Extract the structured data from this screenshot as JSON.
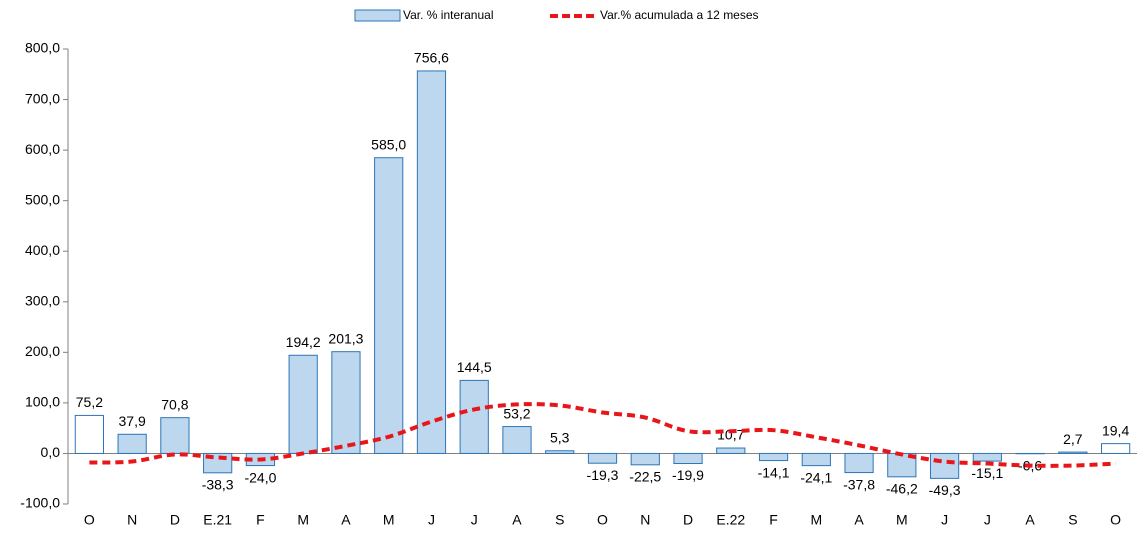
{
  "chart_data": {
    "type": "bar_line",
    "categories": [
      "O",
      "N",
      "D",
      "E.21",
      "F",
      "M",
      "A",
      "M",
      "J",
      "J",
      "A",
      "S",
      "O",
      "N",
      "D",
      "E.22",
      "F",
      "M",
      "A",
      "M",
      "J",
      "J",
      "A",
      "S",
      "O"
    ],
    "series": [
      {
        "name": "Var. % interanual",
        "type": "bar",
        "color": "#bdd7ee",
        "edge_color": "#2e75b6",
        "colors": [
          "#ffffff",
          "#bdd7ee",
          "#bdd7ee",
          "#bdd7ee",
          "#bdd7ee",
          "#bdd7ee",
          "#bdd7ee",
          "#bdd7ee",
          "#bdd7ee",
          "#bdd7ee",
          "#bdd7ee",
          "#bdd7ee",
          "#bdd7ee",
          "#bdd7ee",
          "#bdd7ee",
          "#bdd7ee",
          "#bdd7ee",
          "#bdd7ee",
          "#bdd7ee",
          "#bdd7ee",
          "#bdd7ee",
          "#bdd7ee",
          "#bdd7ee",
          "#bdd7ee",
          "#ffffff"
        ],
        "values": [
          75.2,
          37.9,
          70.8,
          -38.3,
          -24.0,
          194.2,
          201.3,
          585.0,
          756.6,
          144.5,
          53.2,
          5.3,
          -19.3,
          -22.5,
          -19.9,
          10.7,
          -14.1,
          -24.1,
          -37.8,
          -46.2,
          -49.3,
          -15.1,
          -0.6,
          2.7,
          19.4
        ],
        "value_labels": [
          "75,2",
          "37,9",
          "70,8",
          "-38,3",
          "-24,0",
          "194,2",
          "201,3",
          "585,0",
          "756,6",
          "144,5",
          "53,2",
          "5,3",
          "-19,3",
          "-22,5",
          "-19,9",
          "10,7",
          "-14,1",
          "-24,1",
          "-37,8",
          "-46,2",
          "-49,3",
          "-15,1",
          "-0,6",
          "2,7",
          "19,4"
        ]
      },
      {
        "name": "Var.% acumulada a 12 meses",
        "type": "line",
        "color": "#e8161b",
        "values": [
          -18,
          -16,
          -2,
          -8,
          -12,
          0,
          15,
          33,
          63,
          87,
          97,
          95,
          81,
          71,
          44,
          44,
          46,
          32,
          16,
          -2,
          -16,
          -20,
          -24,
          -24,
          -20
        ]
      }
    ],
    "ylim": [
      -100,
      800
    ],
    "yticks": [
      {
        "value": -100,
        "label": "-100,0"
      },
      {
        "value": 0,
        "label": "0,0"
      },
      {
        "value": 100,
        "label": "100,0"
      },
      {
        "value": 200,
        "label": "200,0"
      },
      {
        "value": 300,
        "label": "300,0"
      },
      {
        "value": 400,
        "label": "400,0"
      },
      {
        "value": 500,
        "label": "500,0"
      },
      {
        "value": 600,
        "label": "600,0"
      },
      {
        "value": 700,
        "label": "700,0"
      },
      {
        "value": 800,
        "label": "800,0"
      }
    ],
    "legend": "top"
  }
}
